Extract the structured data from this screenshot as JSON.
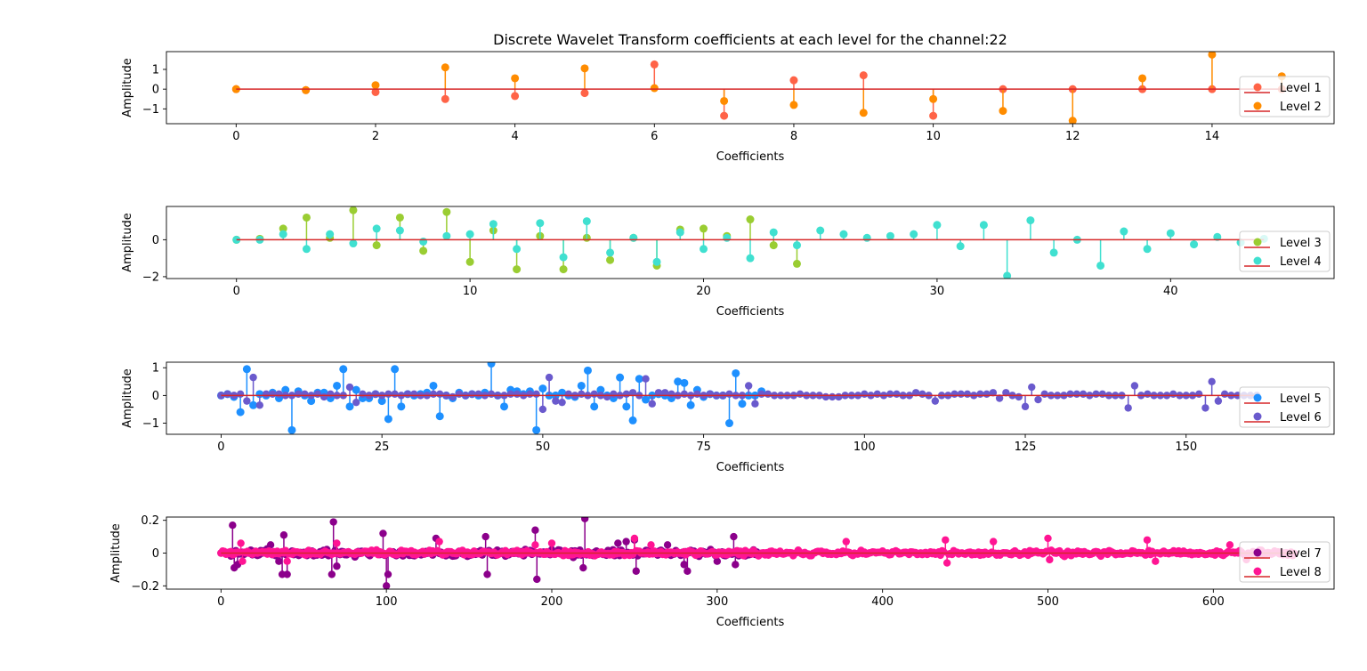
{
  "figure": {
    "title": "Discrete Wavelet Transform coefficients at each level for the channel:22"
  },
  "chart_data": [
    {
      "type": "stem",
      "xlabel": "Coefficients",
      "ylabel": "Amplitude",
      "xlim": [
        -1,
        15.75
      ],
      "ylim": [
        -1.75,
        1.9
      ],
      "xticks": [
        0,
        2,
        4,
        6,
        8,
        10,
        12,
        14
      ],
      "yticks": [
        -1,
        0,
        1
      ],
      "legend_position": "right",
      "series": [
        {
          "name": "Level 1",
          "color": "#ff6347",
          "values": [
            0.0,
            -0.05,
            -0.15,
            -0.5,
            -0.35,
            -0.2,
            1.25,
            -1.35,
            0.45,
            0.7,
            -1.35,
            0.0,
            0.0,
            0.0,
            0.0,
            0.0
          ]
        },
        {
          "name": "Level 2",
          "color": "#ff8c00",
          "values": [
            0.0,
            -0.05,
            0.2,
            1.1,
            0.55,
            1.05,
            0.05,
            -0.6,
            -0.8,
            -1.2,
            -0.5,
            -1.1,
            -1.6,
            0.55,
            1.75,
            0.65
          ]
        }
      ]
    },
    {
      "type": "stem",
      "xlabel": "Coefficients",
      "ylabel": "Amplitude",
      "xlim": [
        -3,
        47
      ],
      "ylim": [
        -2.1,
        1.8
      ],
      "xticks": [
        0,
        10,
        20,
        30,
        40
      ],
      "yticks": [
        -2,
        0
      ],
      "legend_position": "right",
      "series": [
        {
          "name": "Level 3",
          "color": "#9acd32",
          "values": [
            0.0,
            0.05,
            0.6,
            1.2,
            0.1,
            1.6,
            -0.3,
            1.2,
            -0.6,
            1.5,
            -1.2,
            0.5,
            -1.6,
            0.2,
            -1.6,
            0.1,
            -1.1,
            0.1,
            -1.4,
            0.55,
            0.6,
            0.2,
            1.1,
            -0.3,
            -1.3
          ]
        },
        {
          "name": "Level 4",
          "color": "#40e0d0",
          "values": [
            0.0,
            0.0,
            0.3,
            -0.5,
            0.3,
            -0.2,
            0.6,
            0.5,
            -0.1,
            0.2,
            0.3,
            0.85,
            -0.5,
            0.9,
            -0.95,
            1.0,
            -0.7,
            0.1,
            -1.2,
            0.4,
            -0.5,
            0.1,
            -1.0,
            0.4,
            -0.3,
            0.5,
            0.3,
            0.1,
            0.2,
            0.3,
            0.8,
            -0.35,
            0.8,
            -1.95,
            1.05,
            -0.7,
            0.0,
            -1.4,
            0.45,
            -0.5,
            0.35,
            -0.25,
            0.15,
            -0.15,
            0.05
          ]
        }
      ]
    },
    {
      "type": "stem",
      "xlabel": "Coefficients",
      "ylabel": "Amplitude",
      "xlim": [
        -8.5,
        173
      ],
      "ylim": [
        -1.4,
        1.2
      ],
      "xticks": [
        0,
        25,
        50,
        75,
        100,
        125,
        150
      ],
      "yticks": [
        -1,
        0,
        1
      ],
      "legend_position": "right",
      "series": [
        {
          "name": "Level 5",
          "color": "#1e90ff",
          "values": [
            0.0,
            0.05,
            -0.05,
            -0.6,
            0.95,
            -0.35,
            0.05,
            0.0,
            0.1,
            -0.1,
            0.2,
            -1.25,
            0.15,
            0.0,
            -0.2,
            0.1,
            0.1,
            -0.1,
            0.35,
            0.95,
            -0.4,
            0.2,
            -0.1,
            -0.1,
            0.05,
            -0.2,
            -0.85,
            0.95,
            -0.4,
            0.05,
            0.0,
            0.05,
            0.1,
            0.35,
            -0.75,
            0.0,
            -0.1,
            0.1,
            0.0,
            0.05,
            0.0,
            0.1,
            1.15,
            0.0,
            -0.4,
            0.2,
            0.15,
            0.05,
            0.15,
            -1.25,
            0.25,
            0.0,
            0.0,
            0.1,
            0.0,
            -0.05,
            0.35,
            0.9,
            -0.4,
            0.2,
            0.0,
            -0.1,
            0.65,
            -0.4,
            -0.9,
            0.6,
            -0.15,
            0.0,
            0.05,
            0.0,
            -0.1,
            0.5,
            0.45,
            -0.35,
            0.2,
            -0.05,
            0.05,
            0.0,
            0.0,
            -1.0,
            0.8,
            -0.3,
            0.0,
            0.0,
            0.15
          ]
        },
        {
          "name": "Level 6",
          "color": "#6a5acd",
          "values": [
            0.0,
            0.05,
            0.0,
            0.05,
            -0.2,
            0.65,
            -0.35,
            0.05,
            0.05,
            0.05,
            0.0,
            0.0,
            0.05,
            0.05,
            0.0,
            0.05,
            -0.05,
            0.05,
            0.0,
            0.0,
            0.3,
            -0.25,
            0.05,
            0.0,
            0.05,
            0.0,
            0.05,
            0.05,
            0.0,
            0.05,
            0.05,
            0.0,
            0.0,
            0.05,
            0.05,
            0.0,
            -0.05,
            0.05,
            0.0,
            0.05,
            0.05,
            0.0,
            0.05,
            0.0,
            0.0,
            0.05,
            0.05,
            0.0,
            0.05,
            0.05,
            -0.5,
            0.65,
            -0.2,
            -0.25,
            0.05,
            0.0,
            0.05,
            0.0,
            0.05,
            0.0,
            -0.05,
            0.05,
            0.0,
            0.05,
            0.1,
            0.0,
            0.6,
            -0.3,
            0.1,
            0.1,
            0.05,
            0.0,
            0.05,
            0.0,
            0.05,
            0.0,
            0.05,
            0.0,
            0.0,
            0.05,
            0.0,
            0.0,
            0.35,
            -0.3,
            0.05,
            0.05,
            0.0,
            0.0,
            0.0,
            0.0,
            0.05,
            0.0,
            0.0,
            0.0,
            -0.05,
            -0.05,
            -0.05,
            0.0,
            0.0,
            0.0,
            0.05,
            0.0,
            0.05,
            0.0,
            0.05,
            0.05,
            0.0,
            0.0,
            0.1,
            0.05,
            0.0,
            -0.2,
            0.0,
            0.0,
            0.05,
            0.05,
            0.05,
            0.0,
            0.05,
            0.05,
            0.1,
            -0.1,
            0.1,
            0.0,
            -0.05,
            -0.4,
            0.3,
            -0.15,
            0.05,
            0.0,
            0.0,
            0.0,
            0.05,
            0.05,
            0.05,
            0.0,
            0.05,
            0.05,
            0.0,
            0.0,
            0.0,
            -0.45,
            0.35,
            0.0,
            0.05,
            0.0,
            0.0,
            0.0,
            0.05,
            0.0,
            0.0,
            0.0,
            0.05,
            -0.45,
            0.5,
            -0.2,
            0.05,
            0.0,
            0.0,
            0.0,
            0.0,
            0.0
          ]
        }
      ]
    },
    {
      "type": "stem",
      "xlabel": "Coefficients",
      "ylabel": "Amplitude",
      "xlim": [
        -33,
        673
      ],
      "ylim": [
        -0.22,
        0.22
      ],
      "xticks": [
        0,
        100,
        200,
        300,
        400,
        500,
        600
      ],
      "yticks": [
        -0.2,
        0.0,
        0.2
      ],
      "legend_position": "right",
      "series": [
        {
          "name": "Level 7",
          "color": "#8b008b",
          "n": 325,
          "baseline_amplitude": 0.03,
          "spikes": [
            [
              7,
              0.17
            ],
            [
              8,
              -0.09
            ],
            [
              10,
              -0.07
            ],
            [
              30,
              0.05
            ],
            [
              35,
              -0.05
            ],
            [
              37,
              -0.13
            ],
            [
              38,
              0.11
            ],
            [
              40,
              -0.13
            ],
            [
              68,
              0.19
            ],
            [
              67,
              -0.13
            ],
            [
              70,
              -0.08
            ],
            [
              98,
              0.12
            ],
            [
              100,
              -0.2
            ],
            [
              101,
              -0.13
            ],
            [
              130,
              0.09
            ],
            [
              160,
              0.1
            ],
            [
              161,
              -0.13
            ],
            [
              190,
              0.14
            ],
            [
              191,
              -0.16
            ],
            [
              220,
              0.21
            ],
            [
              219,
              -0.09
            ],
            [
              250,
              0.08
            ],
            [
              251,
              -0.11
            ],
            [
              280,
              -0.07
            ],
            [
              282,
              -0.11
            ],
            [
              310,
              0.1
            ],
            [
              311,
              -0.07
            ],
            [
              240,
              0.06
            ],
            [
              245,
              0.07
            ],
            [
              270,
              0.05
            ],
            [
              300,
              -0.05
            ]
          ]
        },
        {
          "name": "Level 8",
          "color": "#ff1493",
          "n": 650,
          "baseline_amplitude": 0.022,
          "spikes": [
            [
              12,
              0.06
            ],
            [
              13,
              -0.05
            ],
            [
              40,
              -0.05
            ],
            [
              70,
              0.06
            ],
            [
              132,
              0.07
            ],
            [
              190,
              0.05
            ],
            [
              200,
              0.06
            ],
            [
              250,
              0.09
            ],
            [
              260,
              0.05
            ],
            [
              378,
              0.07
            ],
            [
              438,
              0.08
            ],
            [
              439,
              -0.06
            ],
            [
              467,
              0.07
            ],
            [
              500,
              0.09
            ],
            [
              501,
              -0.04
            ],
            [
              560,
              0.08
            ],
            [
              565,
              -0.05
            ],
            [
              610,
              0.05
            ],
            [
              620,
              -0.04
            ]
          ]
        }
      ]
    }
  ]
}
